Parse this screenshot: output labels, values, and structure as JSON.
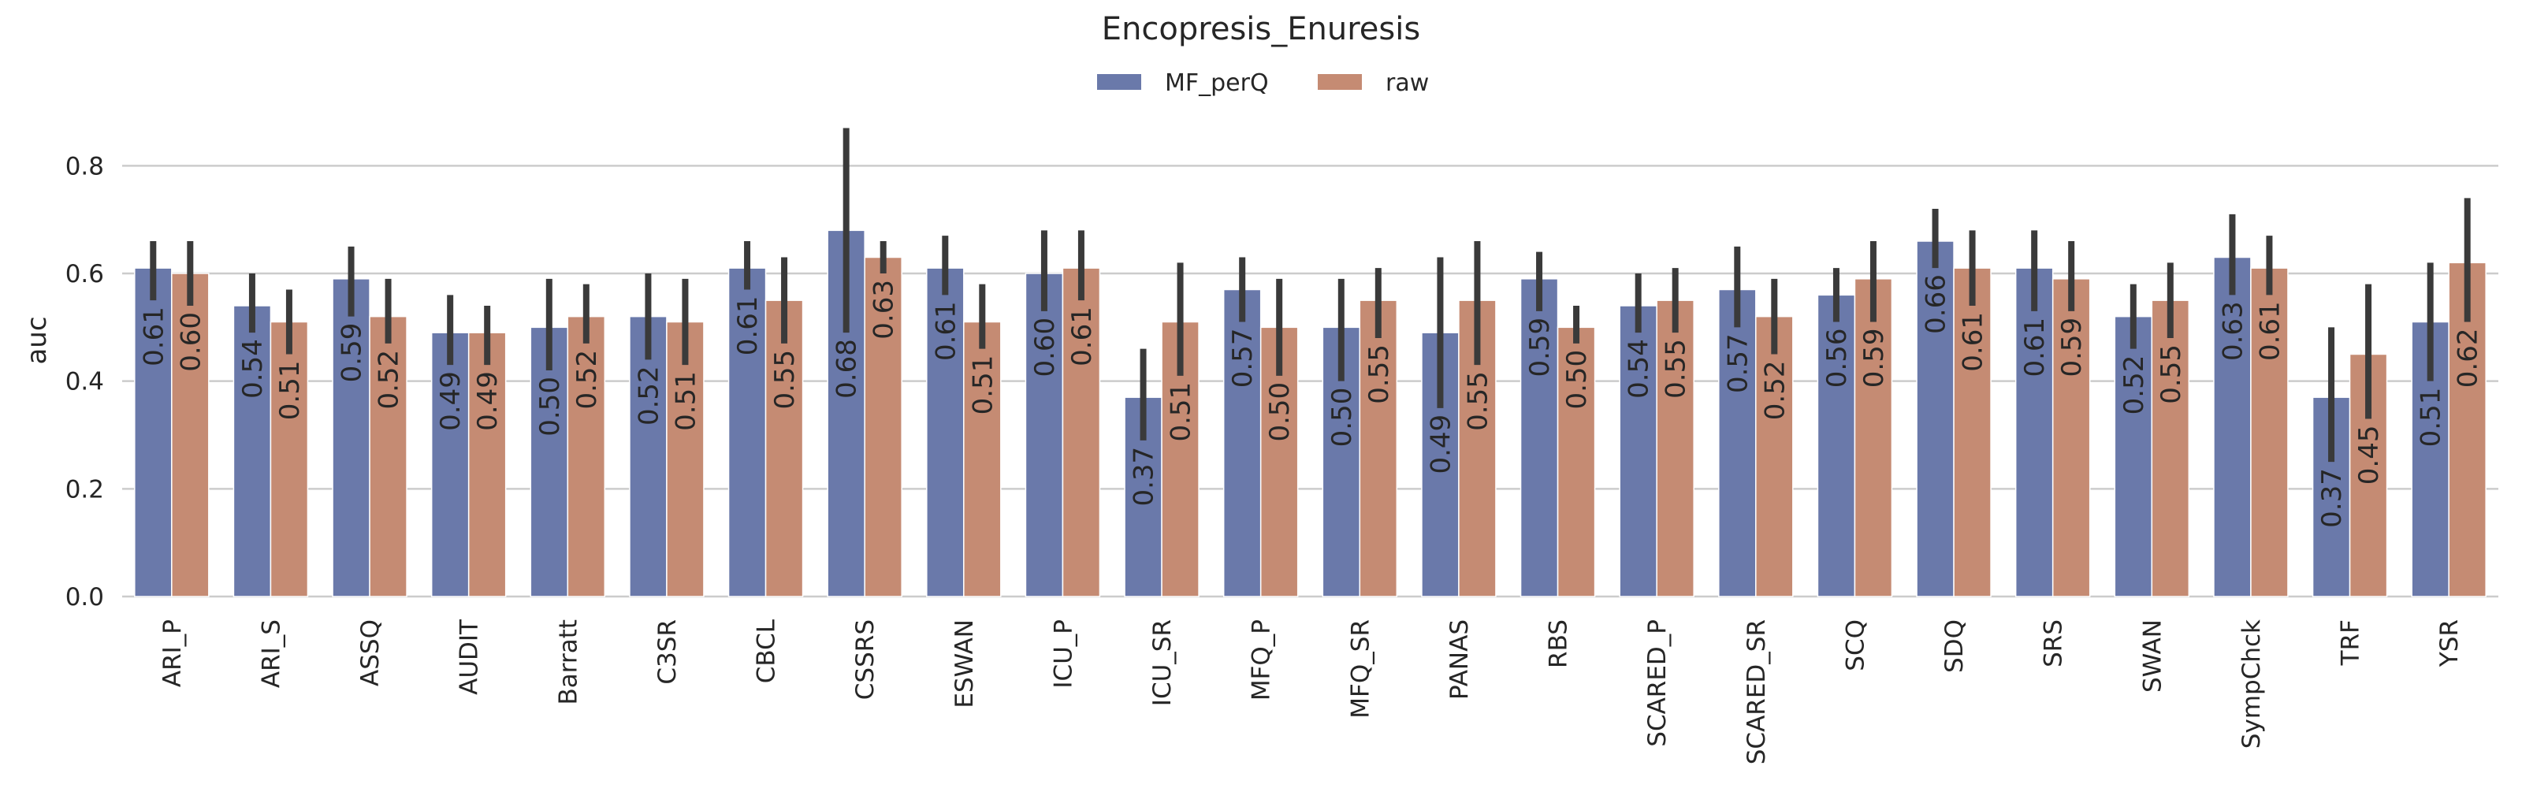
{
  "chart_data": {
    "type": "bar",
    "title": "Encopresis_Enuresis",
    "xlabel": "",
    "ylabel": "auc",
    "ylim": [
      0,
      0.9
    ],
    "yticks": [
      "0.0",
      "0.2",
      "0.4",
      "0.6",
      "0.8"
    ],
    "grid": true,
    "legend_position": "top-center",
    "categories": [
      "ARI_P",
      "ARI_S",
      "ASSQ",
      "AUDIT",
      "Barratt",
      "C3SR",
      "CBCL",
      "CSSRS",
      "ESWAN",
      "ICU_P",
      "ICU_SR",
      "MFQ_P",
      "MFQ_SR",
      "PANAS",
      "RBS",
      "SCARED_P",
      "SCARED_SR",
      "SCQ",
      "SDQ",
      "SRS",
      "SWAN",
      "SympChck",
      "TRF",
      "YSR"
    ],
    "series": [
      {
        "name": "MF_perQ",
        "color": "#6a79aa",
        "values": [
          0.61,
          0.54,
          0.59,
          0.49,
          0.5,
          0.52,
          0.61,
          0.68,
          0.61,
          0.6,
          0.37,
          0.57,
          0.5,
          0.49,
          0.59,
          0.54,
          0.57,
          0.56,
          0.66,
          0.61,
          0.52,
          0.63,
          0.37,
          0.51
        ],
        "labels": [
          "0.61",
          "0.54",
          "0.59",
          "0.49",
          "0.50",
          "0.52",
          "0.61",
          "0.68",
          "0.61",
          "0.60",
          "0.37",
          "0.57",
          "0.50",
          "0.49",
          "0.59",
          "0.54",
          "0.57",
          "0.56",
          "0.66",
          "0.61",
          "0.52",
          "0.63",
          "0.37",
          "0.51"
        ],
        "err_low": [
          0.55,
          0.49,
          0.52,
          0.43,
          0.42,
          0.44,
          0.57,
          0.49,
          0.56,
          0.53,
          0.29,
          0.51,
          0.4,
          0.35,
          0.53,
          0.49,
          0.5,
          0.51,
          0.61,
          0.53,
          0.46,
          0.56,
          0.25,
          0.4
        ],
        "err_high": [
          0.66,
          0.6,
          0.65,
          0.56,
          0.59,
          0.6,
          0.66,
          0.87,
          0.67,
          0.68,
          0.46,
          0.63,
          0.59,
          0.63,
          0.64,
          0.6,
          0.65,
          0.61,
          0.72,
          0.68,
          0.58,
          0.71,
          0.5,
          0.62
        ]
      },
      {
        "name": "raw",
        "color": "#c58b73",
        "values": [
          0.6,
          0.51,
          0.52,
          0.49,
          0.52,
          0.51,
          0.55,
          0.63,
          0.51,
          0.61,
          0.51,
          0.5,
          0.55,
          0.55,
          0.5,
          0.55,
          0.52,
          0.59,
          0.61,
          0.59,
          0.55,
          0.61,
          0.45,
          0.62
        ],
        "labels": [
          "0.60",
          "0.51",
          "0.52",
          "0.49",
          "0.52",
          "0.51",
          "0.55",
          "0.63",
          "0.51",
          "0.61",
          "0.51",
          "0.50",
          "0.55",
          "0.55",
          "0.50",
          "0.55",
          "0.52",
          "0.59",
          "0.61",
          "0.59",
          "0.55",
          "0.61",
          "0.45",
          "0.62"
        ],
        "err_low": [
          0.54,
          0.45,
          0.47,
          0.43,
          0.47,
          0.43,
          0.47,
          0.6,
          0.46,
          0.55,
          0.41,
          0.41,
          0.48,
          0.43,
          0.47,
          0.49,
          0.45,
          0.51,
          0.54,
          0.53,
          0.48,
          0.56,
          0.33,
          0.51
        ],
        "err_high": [
          0.66,
          0.57,
          0.59,
          0.54,
          0.58,
          0.59,
          0.63,
          0.66,
          0.58,
          0.68,
          0.62,
          0.59,
          0.61,
          0.66,
          0.54,
          0.61,
          0.59,
          0.66,
          0.68,
          0.66,
          0.62,
          0.67,
          0.58,
          0.74
        ]
      }
    ]
  }
}
